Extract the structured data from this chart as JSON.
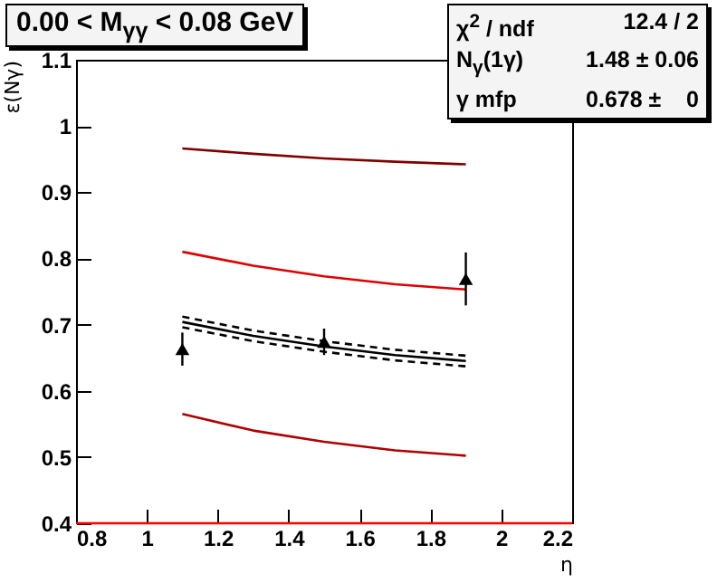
{
  "chart_data": {
    "type": "scatter",
    "title": "0.00 < M$_{γγ}$ < 0.08 GeV",
    "xlabel": "η",
    "ylabel": "ε(Nγ)",
    "annotations": [
      "χ$^{2}$ / ndf",
      "12.4 / 2",
      "N$_{γ}$(1γ)",
      "1.48 ± 0.06",
      "γ mfp",
      "0.678 ±    0"
    ],
    "xlim": [
      0.8,
      2.2
    ],
    "xticks": [
      0.8,
      1,
      1.2,
      1.4,
      1.6,
      1.8,
      2,
      2.2
    ],
    "ylim": [
      0.4,
      1.1
    ],
    "yticks": [
      0.4,
      0.5,
      0.6,
      0.7,
      0.8,
      0.9,
      1,
      1.1
    ],
    "grid": false,
    "series": [
      {
        "type": "line",
        "color": "#ff0000",
        "line_style": "solid",
        "marker": "none",
        "x": [
          0.8,
          2.2
        ],
        "values": [
          0.4,
          0.4
        ]
      },
      {
        "type": "line",
        "color": "#800000",
        "line_style": "solid",
        "marker": "none",
        "x": [
          1.1,
          1.3,
          1.5,
          1.7,
          1.9
        ],
        "values": [
          0.966,
          0.958,
          0.951,
          0.946,
          0.942
        ]
      },
      {
        "type": "line",
        "color": "#e00000",
        "line_style": "solid",
        "marker": "none",
        "x": [
          1.1,
          1.3,
          1.5,
          1.7,
          1.9
        ],
        "values": [
          0.81,
          0.789,
          0.773,
          0.761,
          0.753
        ]
      },
      {
        "type": "line",
        "color": "#b00000",
        "line_style": "solid",
        "marker": "none",
        "x": [
          1.1,
          1.3,
          1.5,
          1.7,
          1.9
        ],
        "values": [
          0.565,
          0.54,
          0.523,
          0.51,
          0.502
        ]
      },
      {
        "type": "line",
        "color": "#000000",
        "line_style": "solid",
        "marker": "none",
        "x": [
          1.1,
          1.3,
          1.5,
          1.7,
          1.9
        ],
        "values": [
          0.704,
          0.683,
          0.667,
          0.654,
          0.645
        ]
      },
      {
        "type": "line",
        "color": "#000000",
        "line_style": "dashed",
        "marker": "none",
        "x": [
          1.1,
          1.3,
          1.5,
          1.7,
          1.9
        ],
        "values": [
          0.712,
          0.691,
          0.675,
          0.662,
          0.653
        ]
      },
      {
        "type": "line",
        "color": "#000000",
        "line_style": "dashed",
        "marker": "none",
        "x": [
          1.1,
          1.3,
          1.5,
          1.7,
          1.9
        ],
        "values": [
          0.696,
          0.675,
          0.659,
          0.646,
          0.637
        ]
      },
      {
        "color": "#000000",
        "marker": "triangle",
        "x": [
          1.1,
          1.5,
          1.9
        ],
        "values": [
          0.663,
          0.674,
          0.769
        ],
        "errors": [
          0.025,
          0.02,
          0.04
        ]
      }
    ]
  }
}
